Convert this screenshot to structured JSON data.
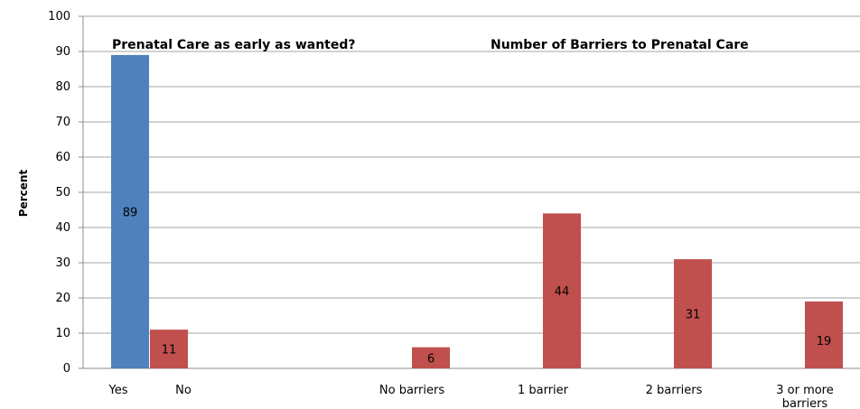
{
  "chart_data": {
    "type": "bar",
    "ylabel": "Percent",
    "ylim": [
      0,
      100
    ],
    "yticks": [
      0,
      10,
      20,
      30,
      40,
      50,
      60,
      70,
      80,
      90,
      100
    ],
    "grid": true,
    "panel_titles": [
      "Prenatal Care as early as wanted?",
      "Number of Barriers to Prenatal Care"
    ],
    "categories": [
      {
        "label": "Yes",
        "label_lines": [
          "Yes"
        ]
      },
      {
        "label": "No",
        "label_lines": [
          "No"
        ]
      },
      {
        "label": "No barriers",
        "label_lines": [
          "No barriers"
        ]
      },
      {
        "label": "1 barrier",
        "label_lines": [
          "1 barrier"
        ]
      },
      {
        "label": "2 barriers",
        "label_lines": [
          "2 barriers"
        ]
      },
      {
        "label": "3 or more barriers",
        "label_lines": [
          "3 or more",
          "barriers"
        ]
      }
    ],
    "series": [
      {
        "values": [
          89,
          null,
          null,
          null,
          null,
          null
        ],
        "color": "#4F81BD"
      },
      {
        "values": [
          null,
          11,
          6,
          44,
          31,
          19
        ],
        "color": "#C0504D"
      }
    ],
    "data_labels": [
      "89",
      "11",
      "6",
      "44",
      "31",
      "19"
    ]
  }
}
